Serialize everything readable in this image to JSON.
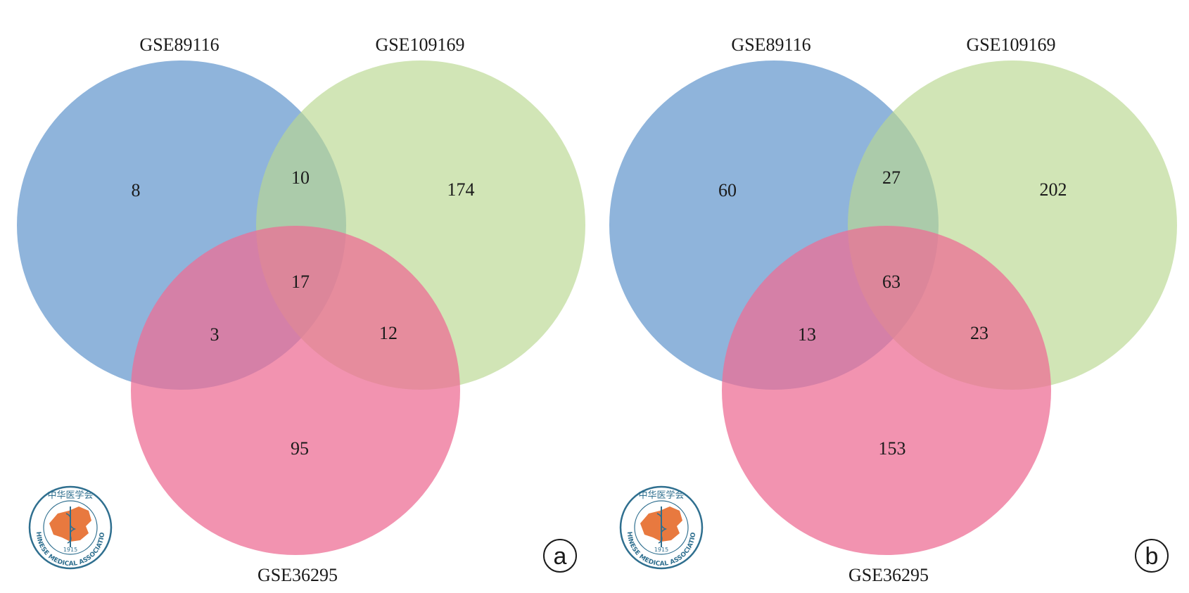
{
  "colors": {
    "set_a": "#6f9fd1",
    "set_b": "#b9d890",
    "set_c": "#ee6d95",
    "logo_ring": "#2f6f8f",
    "logo_map": "#e8793f"
  },
  "panels": [
    {
      "letter": "a",
      "sets": [
        "GSE89116",
        "GSE109169",
        "GSE36295"
      ],
      "regions": {
        "a_only": "8",
        "b_only": "174",
        "c_only": "95",
        "ab": "10",
        "ac": "3",
        "bc": "12",
        "abc": "17"
      }
    },
    {
      "letter": "b",
      "sets": [
        "GSE89116",
        "GSE109169",
        "GSE36295"
      ],
      "regions": {
        "a_only": "60",
        "b_only": "202",
        "c_only": "153",
        "ab": "27",
        "ac": "13",
        "bc": "23",
        "abc": "63"
      }
    }
  ],
  "logo": {
    "icon": "chinese-medical-association-seal",
    "cjk": "中华医学会",
    "year": "1915",
    "ring_text": "CHINESE MEDICAL ASSOCIATION"
  }
}
